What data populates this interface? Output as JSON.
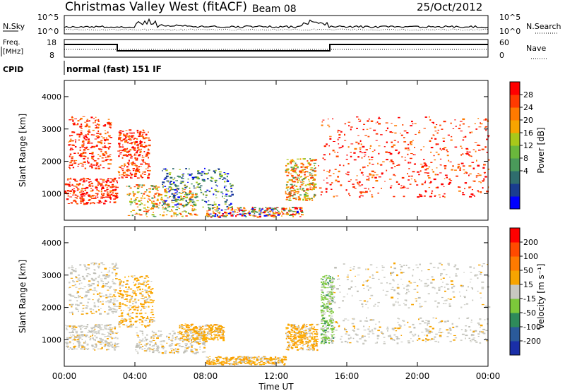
{
  "header": {
    "station": "Christmas Valley West (fitACF)",
    "beam": "Beam 08",
    "date": "25/Oct/2012"
  },
  "strip_labels": {
    "nsky": "N.Sky",
    "nsky_ticks": [
      "10^5",
      "10^0"
    ],
    "nsearch": "N.Search",
    "nsearch_ticks": [
      "10^5",
      "10^0"
    ],
    "freq_line1": "Freq.",
    "freq_line2": "[MHz]",
    "freq_ticks": [
      "18",
      "8"
    ],
    "nave": "Nave",
    "nave_ticks": [
      "60",
      "0"
    ],
    "cpid": "CPID",
    "cpid_value": "normal (fast) 151 IF"
  },
  "x_axis": {
    "label": "Time UT",
    "ticks": [
      "00:00",
      "04:00",
      "08:00",
      "12:00",
      "16:00",
      "20:00",
      "00:00"
    ]
  },
  "colors": {
    "power_scale": [
      "#0000ff",
      "#1a3d8f",
      "#2f6d6d",
      "#4a9a5a",
      "#6ab83c",
      "#a8c81a",
      "#f7a400",
      "#ff7a00",
      "#ff3a00",
      "#ff0000"
    ],
    "velocity_scale": [
      "#1a2fa8",
      "#2a5a9a",
      "#2e8a5a",
      "#7cc83a",
      "#c8c8c0",
      "#f7a400",
      "#ff7a00",
      "#ff4a00",
      "#ff0000"
    ]
  },
  "chart_data": [
    {
      "type": "heatmap",
      "panel": "power",
      "ylabel": "Slant Range [km]",
      "yticks": [
        "4000",
        "3000",
        "2000",
        "1000"
      ],
      "ylim": [
        180,
        4500
      ],
      "xlim_hours": [
        0,
        24
      ],
      "colorbar": {
        "label": "Power [dB]",
        "ticks": [
          "28",
          "24",
          "20",
          "16",
          "12",
          "8",
          "4"
        ]
      },
      "regions": [
        {
          "t0": 0.0,
          "t1": 3.0,
          "r0": 700,
          "r1": 1500,
          "level": "high"
        },
        {
          "t0": 0.2,
          "t1": 2.6,
          "r0": 1800,
          "r1": 3400,
          "level": "high"
        },
        {
          "t0": 3.0,
          "t1": 4.8,
          "r0": 1500,
          "r1": 3000,
          "level": "high"
        },
        {
          "t0": 3.5,
          "t1": 7.5,
          "r0": 300,
          "r1": 1300,
          "level": "mid"
        },
        {
          "t0": 5.5,
          "t1": 9.5,
          "r0": 600,
          "r1": 1800,
          "level": "low"
        },
        {
          "t0": 8.0,
          "t1": 13.5,
          "r0": 300,
          "r1": 600,
          "level": "mixed"
        },
        {
          "t0": 12.5,
          "t1": 14.2,
          "r0": 800,
          "r1": 2100,
          "level": "mid"
        },
        {
          "t0": 14.2,
          "t1": 24.0,
          "r0": 900,
          "r1": 2000,
          "level": "high"
        },
        {
          "t0": 14.5,
          "t1": 24.0,
          "r0": 2000,
          "r1": 3400,
          "level": "high"
        }
      ]
    },
    {
      "type": "heatmap",
      "panel": "velocity",
      "ylabel": "Slant Range [km]",
      "yticks": [
        "4000",
        "3000",
        "2000",
        "1000"
      ],
      "ylim": [
        180,
        4500
      ],
      "xlim_hours": [
        0,
        24
      ],
      "colorbar": {
        "label": "Velocity [m s⁻¹]",
        "ticks": [
          "200",
          "100",
          "50",
          "15",
          "-15",
          "-50",
          "-100",
          "-200"
        ]
      },
      "regions": [
        {
          "t0": 0.0,
          "t1": 3.0,
          "r0": 700,
          "r1": 1500,
          "level": "gray"
        },
        {
          "t0": 0.2,
          "t1": 3.0,
          "r0": 1800,
          "r1": 3400,
          "level": "gray"
        },
        {
          "t0": 3.0,
          "t1": 5.0,
          "r0": 1400,
          "r1": 3000,
          "level": "orange"
        },
        {
          "t0": 4.0,
          "t1": 8.0,
          "r0": 600,
          "r1": 1300,
          "level": "gray"
        },
        {
          "t0": 6.5,
          "t1": 9.0,
          "r0": 1000,
          "r1": 1500,
          "level": "orange"
        },
        {
          "t0": 8.0,
          "t1": 12.5,
          "r0": 250,
          "r1": 500,
          "level": "orange"
        },
        {
          "t0": 12.5,
          "t1": 14.3,
          "r0": 700,
          "r1": 1500,
          "level": "orange"
        },
        {
          "t0": 14.5,
          "t1": 15.2,
          "r0": 900,
          "r1": 3000,
          "level": "green"
        },
        {
          "t0": 15.0,
          "t1": 24.0,
          "r0": 900,
          "r1": 1700,
          "level": "gray"
        },
        {
          "t0": 15.0,
          "t1": 24.0,
          "r0": 2000,
          "r1": 3400,
          "level": "gray"
        }
      ]
    }
  ]
}
